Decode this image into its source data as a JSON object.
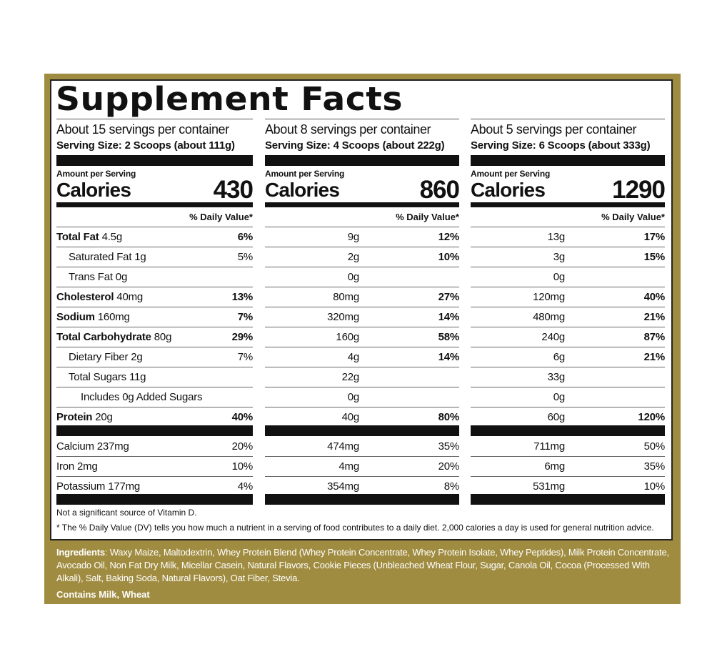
{
  "title": "Supplement Facts",
  "colors": {
    "border_gold": "#a08c40",
    "text": "#111111"
  },
  "columns": [
    {
      "servings": "About 15 servings per container",
      "serving_size": "Serving Size:  2 Scoops (about 111g)",
      "amount_per_serving": "Amount per Serving",
      "calories_label": "Calories",
      "calories": "430",
      "dv_header": "% Daily Value*",
      "rows": [
        {
          "amount": "4.5g",
          "dv": "6%"
        },
        {
          "amount": "1g",
          "dv": "5%"
        },
        {
          "amount": "0g",
          "dv": ""
        },
        {
          "amount": "40mg",
          "dv": "13%"
        },
        {
          "amount": "160mg",
          "dv": "7%"
        },
        {
          "amount": "80g",
          "dv": "29%"
        },
        {
          "amount": "2g",
          "dv": "7%"
        },
        {
          "amount": "11g",
          "dv": ""
        },
        {
          "amount": "0g",
          "dv": ""
        },
        {
          "amount": "20g",
          "dv": "40%"
        }
      ],
      "minerals": [
        {
          "amount": "237mg",
          "dv": "20%"
        },
        {
          "amount": "2mg",
          "dv": "10%"
        },
        {
          "amount": "177mg",
          "dv": "4%"
        }
      ]
    },
    {
      "servings": "About 8 servings per container",
      "serving_size": "Serving Size: 4 Scoops (about 222g)",
      "amount_per_serving": "Amount per Serving",
      "calories_label": "Calories",
      "calories": "860",
      "dv_header": "% Daily Value*",
      "rows": [
        {
          "amount": "9g",
          "dv": "12%"
        },
        {
          "amount": "2g",
          "dv": "10%"
        },
        {
          "amount": "0g",
          "dv": ""
        },
        {
          "amount": "80mg",
          "dv": "27%"
        },
        {
          "amount": "320mg",
          "dv": "14%"
        },
        {
          "amount": "160g",
          "dv": "58%"
        },
        {
          "amount": "4g",
          "dv": "14%"
        },
        {
          "amount": "22g",
          "dv": ""
        },
        {
          "amount": "0g",
          "dv": ""
        },
        {
          "amount": "40g",
          "dv": "80%"
        }
      ],
      "minerals": [
        {
          "amount": "474mg",
          "dv": "35%"
        },
        {
          "amount": "4mg",
          "dv": "20%"
        },
        {
          "amount": "354mg",
          "dv": "8%"
        }
      ]
    },
    {
      "servings": "About 5 servings per container",
      "serving_size": "Serving Size: 6 Scoops (about 333g)",
      "amount_per_serving": "Amount per Serving",
      "calories_label": "Calories",
      "calories": "1290",
      "dv_header": "% Daily Value*",
      "rows": [
        {
          "amount": "13g",
          "dv": "17%"
        },
        {
          "amount": "3g",
          "dv": "15%"
        },
        {
          "amount": "0g",
          "dv": ""
        },
        {
          "amount": "120mg",
          "dv": "40%"
        },
        {
          "amount": "480mg",
          "dv": "21%"
        },
        {
          "amount": "240g",
          "dv": "87%"
        },
        {
          "amount": "6g",
          "dv": "21%"
        },
        {
          "amount": "33g",
          "dv": ""
        },
        {
          "amount": "0g",
          "dv": ""
        },
        {
          "amount": "60g",
          "dv": "120%"
        }
      ],
      "minerals": [
        {
          "amount": "711mg",
          "dv": "50%"
        },
        {
          "amount": "6mg",
          "dv": "35%"
        },
        {
          "amount": "531mg",
          "dv": "10%"
        }
      ]
    }
  ],
  "nutrients": [
    {
      "name": "Total Fat",
      "bold": true,
      "indent": 0
    },
    {
      "name": "Saturated Fat",
      "bold": false,
      "indent": 1
    },
    {
      "name": "Trans Fat",
      "bold": false,
      "indent": 1
    },
    {
      "name": "Cholesterol",
      "bold": true,
      "indent": 0
    },
    {
      "name": "Sodium",
      "bold": true,
      "indent": 0
    },
    {
      "name": "Total Carbohydrate",
      "bold": true,
      "indent": 0
    },
    {
      "name": "Dietary Fiber",
      "bold": false,
      "indent": 1
    },
    {
      "name": "Total Sugars",
      "bold": false,
      "indent": 1
    },
    {
      "name": "Includes 0g Added Sugars",
      "bold": false,
      "indent": 2
    },
    {
      "name": "Protein",
      "bold": true,
      "indent": 0
    }
  ],
  "minerals": [
    "Calcium",
    "Iron",
    "Potassium"
  ],
  "note_vitamin": "Not a significant source of Vitamin D.",
  "note_dv": "*   The % Daily Value (DV) tells you how much a nutrient in a serving of food contributes to a daily diet. 2,000 calories a day is used for general nutrition advice.",
  "ingredients_label": "Ingredients",
  "ingredients": ": Waxy Maize, Maltodextrin, Whey Protein Blend (Whey Protein Concentrate, Whey Protein Isolate, Whey Peptides), Milk Protein Concentrate, Avocado Oil, Non Fat Dry Milk, Micellar Casein, Natural Flavors, Cookie Pieces (Unbleached Wheat Flour, Sugar, Canola Oil, Cocoa (Processed With Alkali), Salt, Baking Soda, Natural Flavors), Oat Fiber, Stevia.",
  "contains": "Contains Milk, Wheat"
}
